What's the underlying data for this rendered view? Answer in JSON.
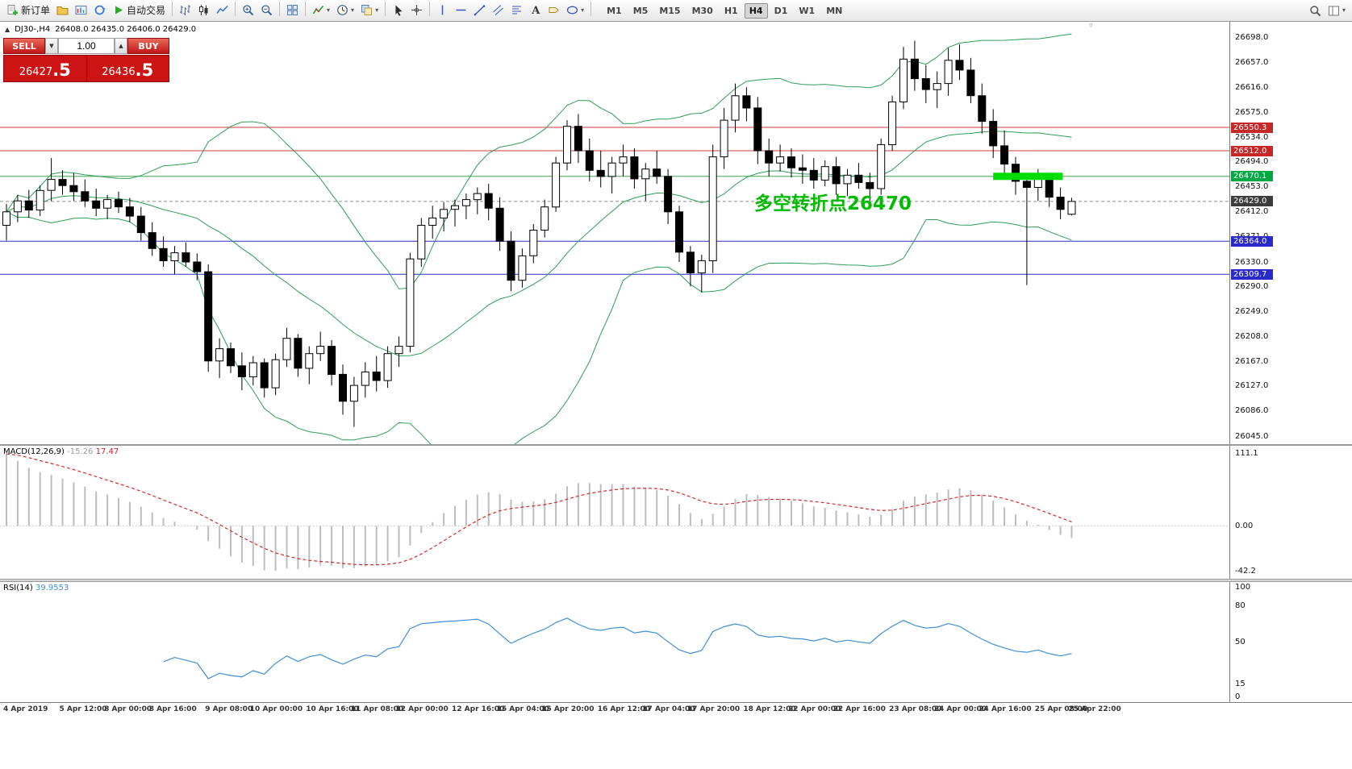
{
  "toolbar": {
    "new_order": "新订单",
    "auto_trading": "自动交易",
    "buttons_left": [
      {
        "icon": "new-order",
        "label": "新订单"
      },
      {
        "icon": "profiles"
      },
      {
        "icon": "market-watch"
      },
      {
        "icon": "refresh"
      },
      {
        "icon": "auto-trading",
        "label": "自动交易"
      },
      {
        "sep": true
      },
      {
        "icon": "bar-chart"
      },
      {
        "icon": "candlestick-chart"
      },
      {
        "icon": "line-chart"
      },
      {
        "sep": true
      },
      {
        "icon": "zoom-in"
      },
      {
        "icon": "zoom-out"
      },
      {
        "sep": true
      },
      {
        "icon": "tile-windows"
      },
      {
        "sep": true
      },
      {
        "icon": "indicators",
        "dropdown": true
      },
      {
        "icon": "periods",
        "dropdown": true
      },
      {
        "icon": "templates",
        "dropdown": true
      },
      {
        "sep": true
      },
      {
        "icon": "cursor"
      },
      {
        "icon": "crosshair"
      },
      {
        "sep": true
      },
      {
        "icon": "vertical-line"
      },
      {
        "icon": "horizontal-line"
      },
      {
        "icon": "trendline"
      },
      {
        "icon": "channel"
      },
      {
        "icon": "fibonacci"
      },
      {
        "icon": "text"
      },
      {
        "icon": "label"
      },
      {
        "icon": "shapes",
        "dropdown": true
      },
      {
        "sep": true
      }
    ],
    "buttons_right": [
      {
        "icon": "search"
      },
      {
        "icon": "layout",
        "dropdown": true
      }
    ],
    "timeframes": [
      "M1",
      "M5",
      "M15",
      "M30",
      "H1",
      "H4",
      "D1",
      "W1",
      "MN"
    ],
    "active_timeframe": "H4"
  },
  "icons": {
    "collapse": "▲",
    "spin_up": "▲",
    "spin_down": "▼",
    "dropdown": "▾",
    "shift_marker": "▿"
  },
  "chart_header": {
    "symbol_period": "DJ30-,H4",
    "ohlc_text": "26408.0 26435.0 26406.0 26429.0"
  },
  "trade_panel": {
    "sell_label": "SELL",
    "buy_label": "BUY",
    "volume": "1.00",
    "sell_price": "26427.5",
    "buy_price": "26436.5"
  },
  "annotation": {
    "text": "多空转折点26470",
    "color": "#00bb00"
  },
  "chart_data": {
    "type": "candlestick",
    "symbol": "DJ30-",
    "timeframe": "H4",
    "title": "DJ30-,H4",
    "legend_position": "none",
    "grid": false,
    "y_axis": {
      "min": 26045,
      "max": 26698
    },
    "y_ticks": [
      "26698.0",
      "26657.0",
      "26616.0",
      "26575.0",
      "26534.0",
      "26494.0",
      "26453.0",
      "26412.0",
      "26371.0",
      "26330.0",
      "26290.0",
      "26249.0",
      "26208.0",
      "26167.0",
      "26127.0",
      "26086.0",
      "26045.0"
    ],
    "x_ticks": [
      {
        "bar": 0,
        "label": "4 Apr 2019"
      },
      {
        "bar": 5,
        "label": "5 Apr 12:00"
      },
      {
        "bar": 9,
        "label": "8 Apr 00:00"
      },
      {
        "bar": 13,
        "label": "8 Apr 16:00"
      },
      {
        "bar": 18,
        "label": "9 Apr 08:00"
      },
      {
        "bar": 22,
        "label": "10 Apr 00:00"
      },
      {
        "bar": 27,
        "label": "10 Apr 16:00"
      },
      {
        "bar": 31,
        "label": "11 Apr 08:00"
      },
      {
        "bar": 35,
        "label": "12 Apr 00:00"
      },
      {
        "bar": 40,
        "label": "12 Apr 16:00"
      },
      {
        "bar": 44,
        "label": "15 Apr 04:00"
      },
      {
        "bar": 48,
        "label": "15 Apr 20:00"
      },
      {
        "bar": 53,
        "label": "16 Apr 12:00"
      },
      {
        "bar": 57,
        "label": "17 Apr 04:00"
      },
      {
        "bar": 61,
        "label": "17 Apr 20:00"
      },
      {
        "bar": 66,
        "label": "18 Apr 12:00"
      },
      {
        "bar": 70,
        "label": "22 Apr 00:00"
      },
      {
        "bar": 74,
        "label": "22 Apr 16:00"
      },
      {
        "bar": 79,
        "label": "23 Apr 08:00"
      },
      {
        "bar": 83,
        "label": "24 Apr 00:00"
      },
      {
        "bar": 87,
        "label": "24 Apr 16:00"
      },
      {
        "bar": 92,
        "label": "25 Apr 08:00"
      },
      {
        "bar": 95,
        "label": "25 Apr 22:00"
      }
    ],
    "candles": [
      [
        26390,
        26425,
        26365,
        26412
      ],
      [
        26412,
        26440,
        26395,
        26430
      ],
      [
        26430,
        26448,
        26402,
        26415
      ],
      [
        26415,
        26455,
        26405,
        26447
      ],
      [
        26447,
        26500,
        26430,
        26465
      ],
      [
        26465,
        26480,
        26440,
        26455
      ],
      [
        26455,
        26475,
        26430,
        26445
      ],
      [
        26445,
        26465,
        26420,
        26430
      ],
      [
        26430,
        26450,
        26405,
        26418
      ],
      [
        26418,
        26440,
        26400,
        26432
      ],
      [
        26432,
        26445,
        26410,
        26420
      ],
      [
        26420,
        26435,
        26395,
        26405
      ],
      [
        26405,
        26420,
        26365,
        26378
      ],
      [
        26378,
        26395,
        26340,
        26352
      ],
      [
        26352,
        26372,
        26322,
        26332
      ],
      [
        26332,
        26356,
        26310,
        26345
      ],
      [
        26345,
        26362,
        26322,
        26330
      ],
      [
        26330,
        26344,
        26300,
        26314
      ],
      [
        26314,
        26326,
        26150,
        26168
      ],
      [
        26168,
        26205,
        26140,
        26188
      ],
      [
        26188,
        26198,
        26148,
        26160
      ],
      [
        26160,
        26182,
        26120,
        26142
      ],
      [
        26142,
        26176,
        26128,
        26165
      ],
      [
        26165,
        26172,
        26108,
        26124
      ],
      [
        26124,
        26180,
        26112,
        26170
      ],
      [
        26170,
        26222,
        26158,
        26205
      ],
      [
        26205,
        26212,
        26142,
        26156
      ],
      [
        26156,
        26192,
        26130,
        26180
      ],
      [
        26180,
        26216,
        26168,
        26192
      ],
      [
        26192,
        26202,
        26128,
        26146
      ],
      [
        26146,
        26162,
        26080,
        26102
      ],
      [
        26102,
        26142,
        26060,
        26128
      ],
      [
        26128,
        26166,
        26108,
        26150
      ],
      [
        26150,
        26176,
        26118,
        26136
      ],
      [
        26136,
        26192,
        26124,
        26180
      ],
      [
        26180,
        26208,
        26158,
        26192
      ],
      [
        26192,
        26345,
        26182,
        26335
      ],
      [
        26335,
        26402,
        26322,
        26390
      ],
      [
        26390,
        26422,
        26368,
        26402
      ],
      [
        26402,
        26428,
        26380,
        26416
      ],
      [
        26416,
        26432,
        26388,
        26422
      ],
      [
        26422,
        26442,
        26400,
        26432
      ],
      [
        26432,
        26452,
        26408,
        26442
      ],
      [
        26442,
        26458,
        26398,
        26418
      ],
      [
        26418,
        26436,
        26348,
        26364
      ],
      [
        26364,
        26380,
        26282,
        26300
      ],
      [
        26300,
        26352,
        26288,
        26340
      ],
      [
        26340,
        26392,
        26328,
        26382
      ],
      [
        26382,
        26432,
        26370,
        26420
      ],
      [
        26420,
        26502,
        26412,
        26492
      ],
      [
        26492,
        26562,
        26480,
        26552
      ],
      [
        26552,
        26572,
        26492,
        26512
      ],
      [
        26512,
        26532,
        26462,
        26480
      ],
      [
        26480,
        26512,
        26452,
        26470
      ],
      [
        26470,
        26502,
        26442,
        26492
      ],
      [
        26492,
        26522,
        26470,
        26502
      ],
      [
        26502,
        26516,
        26450,
        26466
      ],
      [
        26466,
        26492,
        26430,
        26482
      ],
      [
        26482,
        26512,
        26458,
        26470
      ],
      [
        26470,
        26482,
        26392,
        26412
      ],
      [
        26412,
        26422,
        26330,
        26346
      ],
      [
        26346,
        26356,
        26290,
        26312
      ],
      [
        26312,
        26342,
        26280,
        26332
      ],
      [
        26332,
        26522,
        26312,
        26502
      ],
      [
        26502,
        26582,
        26482,
        26562
      ],
      [
        26562,
        26622,
        26542,
        26602
      ],
      [
        26602,
        26616,
        26560,
        26582
      ],
      [
        26582,
        26600,
        26490,
        26512
      ],
      [
        26512,
        26532,
        26470,
        26492
      ],
      [
        26492,
        26522,
        26478,
        26502
      ],
      [
        26502,
        26516,
        26468,
        26484
      ],
      [
        26484,
        26506,
        26458,
        26480
      ],
      [
        26480,
        26500,
        26450,
        26464
      ],
      [
        26464,
        26496,
        26454,
        26486
      ],
      [
        26486,
        26502,
        26440,
        26458
      ],
      [
        26458,
        26482,
        26438,
        26472
      ],
      [
        26472,
        26492,
        26450,
        26460
      ],
      [
        26460,
        26476,
        26430,
        26450
      ],
      [
        26450,
        26532,
        26440,
        26522
      ],
      [
        26522,
        26602,
        26512,
        26592
      ],
      [
        26592,
        26682,
        26580,
        26662
      ],
      [
        26662,
        26692,
        26610,
        26630
      ],
      [
        26630,
        26652,
        26590,
        26612
      ],
      [
        26612,
        26642,
        26582,
        26622
      ],
      [
        26622,
        26680,
        26602,
        26660
      ],
      [
        26660,
        26686,
        26628,
        26644
      ],
      [
        26644,
        26664,
        26590,
        26602
      ],
      [
        26602,
        26622,
        26540,
        26560
      ],
      [
        26560,
        26580,
        26500,
        26520
      ],
      [
        26520,
        26545,
        26470,
        26490
      ],
      [
        26490,
        26502,
        26440,
        26462
      ],
      [
        26462,
        26472,
        26292,
        26452
      ],
      [
        26452,
        26482,
        26430,
        26466
      ],
      [
        26466,
        26476,
        26420,
        26436
      ],
      [
        26436,
        26452,
        26400,
        26416
      ],
      [
        26408,
        26435,
        26406,
        26429
      ]
    ],
    "hlines": [
      {
        "price": 26550.3,
        "label": "26550.3",
        "color": "#cc3b3b",
        "badge": "#c62828",
        "style": "solid"
      },
      {
        "price": 26512.0,
        "label": "26512.0",
        "color": "#cc3b3b",
        "badge": "#c62828",
        "style": "solid"
      },
      {
        "price": 26470.1,
        "label": "26470.1",
        "color": "#3aa653",
        "badge": "#00a844",
        "style": "solid"
      },
      {
        "price": 26429.0,
        "label": "26429.0",
        "color": "#8d8d8d",
        "badge": "#3c3c3c",
        "style": "dashed"
      },
      {
        "price": 26364.0,
        "label": "26364.0",
        "color": "#2a2ac8",
        "badge": "#2a2ac8",
        "style": "solid"
      },
      {
        "price": 26309.7,
        "label": "26309.7",
        "color": "#2a2ac8",
        "badge": "#2a2ac8",
        "style": "solid"
      }
    ],
    "highlight": {
      "price": 26470.1,
      "from_bar": 88,
      "to_bar": 94.2,
      "color": "#00dd00"
    },
    "bollinger": {
      "period": 20,
      "deviation": 2,
      "color": "#2f9e57"
    },
    "macd": {
      "label": "MACD(12,26,9)",
      "main_value": "-15.26",
      "signal_value": "17.47",
      "scale": [
        "111.1",
        "0.00",
        "-42.2"
      ],
      "histogram_color": "#bdbdbd",
      "signal_color": "#d42a2a"
    },
    "rsi": {
      "label": "RSI(14)",
      "value": "39.9553",
      "scale": [
        "100",
        "80",
        "50",
        "15",
        "0"
      ],
      "color": "#3f8fd6"
    }
  }
}
